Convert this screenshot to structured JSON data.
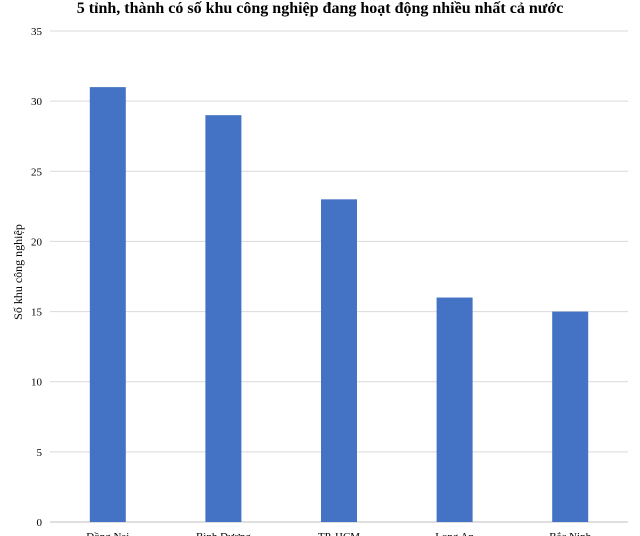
{
  "chart_data": {
    "type": "bar",
    "title": "5 tỉnh, thành có số khu công nghiệp đang hoạt động nhiều nhất cả nước",
    "xlabel": "",
    "ylabel": "Số khu công nghiệp",
    "categories": [
      "Đồng Nai",
      "Bình Dương",
      "TP. HCM",
      "Long An",
      "Bắc Ninh"
    ],
    "values": [
      31,
      29,
      23,
      16,
      15
    ],
    "ylim": [
      0,
      35
    ],
    "yticks": [
      0,
      5,
      10,
      15,
      20,
      25,
      30,
      35
    ],
    "grid": true,
    "legend": "none",
    "bar_color": "#4472C4",
    "grid_color": "#D9D9D9"
  }
}
